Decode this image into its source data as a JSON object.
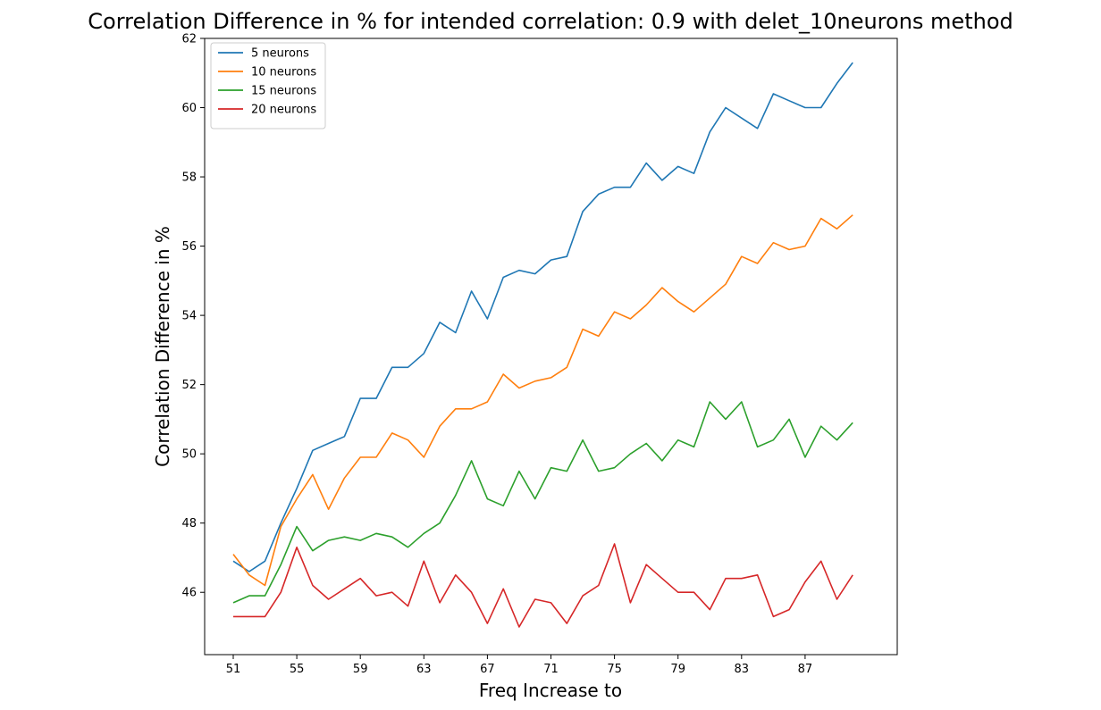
{
  "chart_data": {
    "type": "line",
    "title": "Correlation Difference in % for intended correlation:  0.9 with delet_10neurons method",
    "xlabel": "Freq Increase to",
    "ylabel": "Correlation Difference in %",
    "xlim": [
      49.2,
      92.8
    ],
    "ylim": [
      44.2,
      62.0
    ],
    "xticks": [
      51,
      55,
      59,
      63,
      67,
      71,
      75,
      79,
      83,
      87
    ],
    "yticks": [
      46,
      48,
      50,
      52,
      54,
      56,
      58,
      60,
      62
    ],
    "grid": false,
    "legend_position": "top-left",
    "x": [
      51,
      52,
      53,
      54,
      55,
      56,
      57,
      58,
      59,
      60,
      61,
      62,
      63,
      64,
      65,
      66,
      67,
      68,
      69,
      70,
      71,
      72,
      73,
      74,
      75,
      76,
      77,
      78,
      79,
      80,
      81,
      82,
      83,
      84,
      85,
      86,
      87,
      88,
      89,
      90
    ],
    "series": [
      {
        "name": "5 neurons",
        "color": "#1f77b4",
        "values": [
          46.9,
          46.6,
          46.9,
          48.0,
          49.0,
          50.1,
          50.3,
          50.5,
          51.6,
          51.6,
          52.5,
          52.5,
          52.9,
          53.8,
          53.5,
          54.7,
          53.9,
          55.1,
          55.3,
          55.2,
          55.6,
          55.7,
          57.0,
          57.5,
          57.7,
          57.7,
          58.4,
          57.9,
          58.3,
          58.1,
          59.3,
          60.0,
          59.7,
          59.4,
          60.4,
          60.2,
          60.0,
          60.0,
          60.7,
          61.3
        ]
      },
      {
        "name": "10 neurons",
        "color": "#ff7f0e",
        "values": [
          47.1,
          46.5,
          46.2,
          47.9,
          48.7,
          49.4,
          48.4,
          49.3,
          49.9,
          49.9,
          50.6,
          50.4,
          49.9,
          50.8,
          51.3,
          51.3,
          51.5,
          52.3,
          51.9,
          52.1,
          52.2,
          52.5,
          53.6,
          53.4,
          54.1,
          53.9,
          54.3,
          54.8,
          54.4,
          54.1,
          54.5,
          54.9,
          55.7,
          55.5,
          56.1,
          55.9,
          56.0,
          56.8,
          56.5,
          56.9
        ]
      },
      {
        "name": "15 neurons",
        "color": "#2ca02c",
        "values": [
          45.7,
          45.9,
          45.9,
          46.8,
          47.9,
          47.2,
          47.5,
          47.6,
          47.5,
          47.7,
          47.6,
          47.3,
          47.7,
          48.0,
          48.8,
          49.8,
          48.7,
          48.5,
          49.5,
          48.7,
          49.6,
          49.5,
          50.4,
          49.5,
          49.6,
          50.0,
          50.3,
          49.8,
          50.4,
          50.2,
          51.5,
          51.0,
          51.5,
          50.2,
          50.4,
          51.0,
          49.9,
          50.8,
          50.4,
          50.9
        ]
      },
      {
        "name": "20 neurons",
        "color": "#d62728",
        "values": [
          45.3,
          45.3,
          45.3,
          46.0,
          47.3,
          46.2,
          45.8,
          46.1,
          46.4,
          45.9,
          46.0,
          45.6,
          46.9,
          45.7,
          46.5,
          46.0,
          45.1,
          46.1,
          45.0,
          45.8,
          45.7,
          45.1,
          45.9,
          46.2,
          47.4,
          45.7,
          46.8,
          46.4,
          46.0,
          46.0,
          45.5,
          46.4,
          46.4,
          46.5,
          45.3,
          45.5,
          46.3,
          46.9,
          45.8,
          46.5
        ]
      }
    ]
  }
}
